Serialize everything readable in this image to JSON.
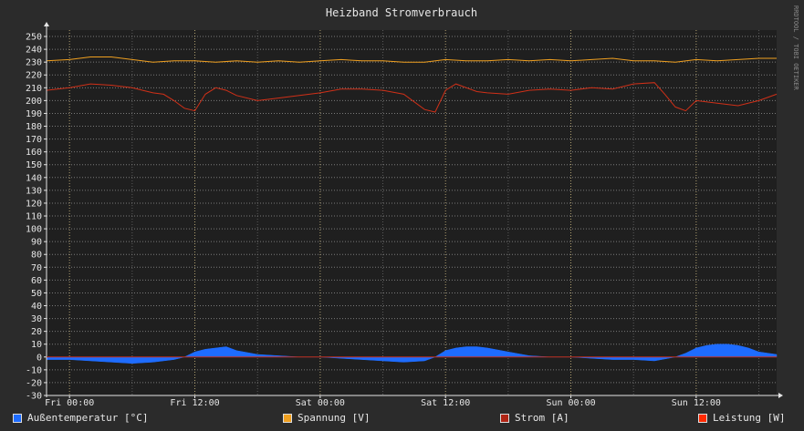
{
  "chart_data": {
    "type": "line",
    "title": "Heizband Stromverbrauch",
    "watermark": "RRDTOOL / TOBI OETIKER",
    "ylim": [
      -30,
      255
    ],
    "y_ticks": [
      250,
      240,
      230,
      220,
      210,
      200,
      190,
      180,
      170,
      160,
      150,
      140,
      130,
      120,
      110,
      100,
      90,
      80,
      70,
      60,
      50,
      40,
      30,
      20,
      10,
      0,
      -10,
      -20,
      -30
    ],
    "x_ticks": [
      "Fri 00:00",
      "Fri 12:00",
      "Sat 00:00",
      "Sat 12:00",
      "Sun 00:00",
      "Sun 12:00"
    ],
    "x_hours": [
      0,
      12,
      24,
      36,
      48,
      60
    ],
    "x_range_hours": [
      -2.2,
      67.7
    ],
    "grid": true,
    "legend_position": "bottom",
    "series": [
      {
        "name": "Außentemperatur [°C]",
        "style": "area",
        "color": "#1e6cff",
        "x": [
          -2.2,
          0,
          2,
          4,
          6,
          8,
          10,
          11,
          12,
          13,
          14,
          15,
          16,
          18,
          20,
          22,
          24,
          26,
          28,
          30,
          32,
          34,
          35,
          36,
          37,
          38,
          39,
          40,
          42,
          44,
          46,
          48,
          50,
          52,
          54,
          56,
          58,
          59,
          60,
          61,
          62,
          63,
          64,
          65,
          66,
          67.7
        ],
        "values": [
          -2,
          -2,
          -3,
          -4,
          -5,
          -4,
          -2,
          0,
          4,
          6,
          7,
          8,
          5,
          2,
          1,
          0,
          0,
          -1,
          -2,
          -3,
          -4,
          -3,
          0,
          5,
          7,
          8,
          8,
          7,
          4,
          1,
          0,
          0,
          -1,
          -2,
          -2,
          -3,
          0,
          3,
          7,
          9,
          10,
          10,
          9,
          7,
          4,
          2
        ]
      },
      {
        "name": "Spannung [V]",
        "style": "line",
        "color": "#f0a020",
        "x": [
          -2.2,
          0,
          2,
          4,
          6,
          8,
          10,
          12,
          14,
          16,
          18,
          20,
          22,
          24,
          26,
          28,
          30,
          32,
          34,
          36,
          38,
          40,
          42,
          44,
          46,
          48,
          50,
          52,
          54,
          56,
          58,
          60,
          62,
          64,
          66,
          67.7
        ],
        "values": [
          231,
          232,
          234,
          234,
          232,
          230,
          231,
          231,
          230,
          231,
          230,
          231,
          230,
          231,
          232,
          231,
          231,
          230,
          230,
          232,
          231,
          231,
          232,
          231,
          232,
          231,
          232,
          233,
          231,
          231,
          230,
          232,
          231,
          232,
          233,
          233
        ]
      },
      {
        "name": "Strom [A]",
        "style": "line",
        "color": "#d03018",
        "x": [
          -2.2,
          0,
          2,
          4,
          5,
          6,
          7,
          8,
          9,
          10,
          11,
          12,
          13,
          14,
          15,
          16,
          18,
          20,
          22,
          24,
          26,
          28,
          30,
          32,
          34,
          35,
          36,
          37,
          38,
          39,
          40,
          42,
          44,
          46,
          48,
          50,
          52,
          54,
          56,
          57,
          58,
          59,
          60,
          62,
          64,
          66,
          67.7
        ],
        "values": [
          208,
          210,
          213,
          212,
          211,
          210,
          208,
          206,
          205,
          200,
          194,
          192,
          205,
          210,
          208,
          204,
          200,
          202,
          204,
          206,
          209,
          209,
          208,
          205,
          193,
          191,
          208,
          213,
          210,
          207,
          206,
          205,
          208,
          209,
          208,
          210,
          209,
          213,
          214,
          205,
          195,
          192,
          200,
          198,
          196,
          200,
          205
        ]
      },
      {
        "name": "Leistung [W]",
        "style": "line",
        "color": "#ff2a00",
        "x": [],
        "values": []
      }
    ]
  }
}
